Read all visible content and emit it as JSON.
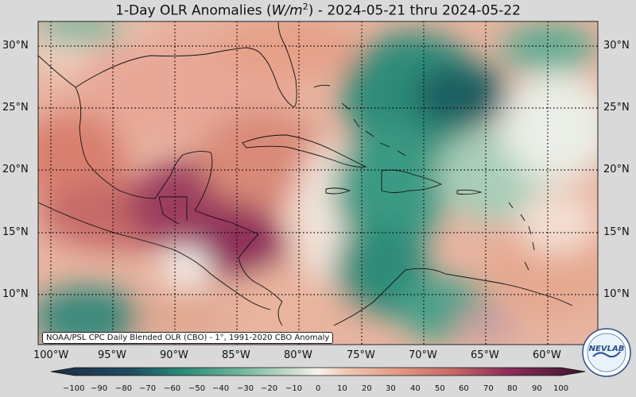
{
  "title": {
    "prefix": "1-Day OLR Anomalies (",
    "unit_base": "W/m",
    "unit_exp": "2",
    "suffix": ") - 2024-05-21 thru 2024-05-22"
  },
  "map": {
    "lat_labels": [
      "30°N",
      "25°N",
      "20°N",
      "15°N",
      "10°N"
    ],
    "lon_labels": [
      "100°W",
      "95°W",
      "90°W",
      "85°W",
      "80°W",
      "75°W",
      "70°W",
      "65°W",
      "60°W"
    ],
    "extent": {
      "lon_min": -103,
      "lon_max": -57,
      "lat_min": 6,
      "lat_max": 32
    },
    "grid_lons": [
      -100,
      -95,
      -90,
      -85,
      -80,
      -75,
      -70,
      -65,
      -60
    ],
    "grid_lats": [
      30,
      25,
      20,
      15,
      10
    ]
  },
  "credit": "NOAA/PSL CPC Daily Blended OLR (CBO) - 1°, 1991-2020 CBO Anomaly",
  "colorbar": {
    "ticks": [
      "−100",
      "−90",
      "−80",
      "−70",
      "−60",
      "−50",
      "−40",
      "−30",
      "−20",
      "−10",
      "0",
      "10",
      "20",
      "30",
      "40",
      "50",
      "60",
      "70",
      "80",
      "90",
      "100"
    ],
    "min": -100,
    "max": 100
  },
  "logo": {
    "text": "NEVLAB"
  },
  "colors": {
    "strong_negative": "#1e3a52",
    "negative": "#2e8c78",
    "neutral": "#f4f0ea",
    "positive": "#d98a78",
    "strong_positive": "#5a1c4a"
  }
}
